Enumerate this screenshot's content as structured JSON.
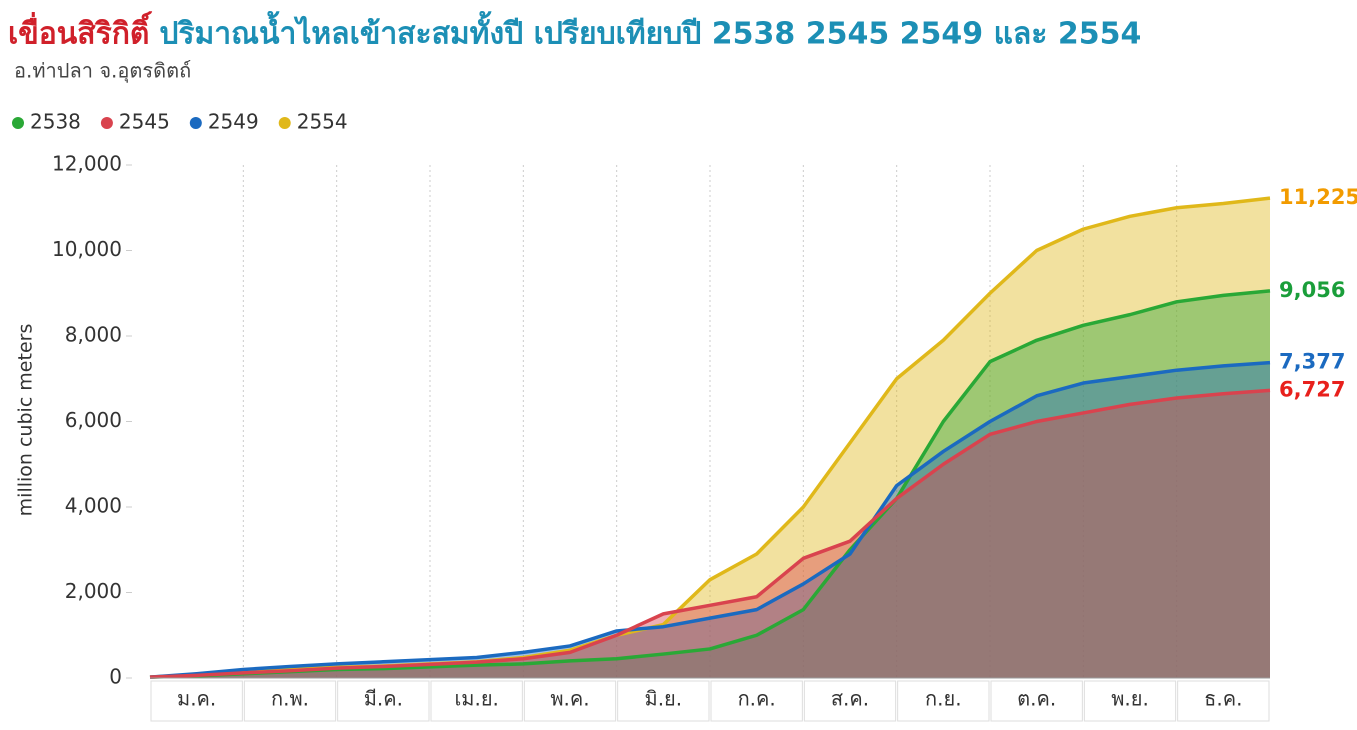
{
  "chart_data": {
    "type": "area-line",
    "title_highlight": "เขื่อนสิริกิติ์",
    "title": "ปริมาณน้ำไหลเข้าสะสมทั้งปี เปรียบเทียบปี 2538 2545 2549 และ 2554",
    "subtitle": "อ.ท่าปลา จ.อุตรดิตถ์",
    "y_label": "million cubic meters",
    "months": [
      "ม.ค.",
      "ก.พ.",
      "มี.ค.",
      "เม.ย.",
      "พ.ค.",
      "มิ.ย.",
      "ก.ค.",
      "ส.ค.",
      "ก.ย.",
      "ต.ค.",
      "พ.ย.",
      "ธ.ค."
    ],
    "x": [
      0,
      0.5,
      1,
      1.5,
      2,
      2.5,
      3,
      3.5,
      4,
      4.5,
      5,
      5.5,
      6,
      6.5,
      7,
      7.5,
      8,
      8.5,
      9,
      9.5,
      10,
      10.5,
      11,
      11.5,
      12
    ],
    "xlim": [
      0,
      12
    ],
    "ylim": [
      0,
      12000
    ],
    "yticks": [
      0,
      {
        "value": 2000,
        "label": "2,000"
      },
      {
        "value": 4000,
        "label": "4,000"
      },
      {
        "value": 6000,
        "label": "6,000"
      },
      {
        "value": 8000,
        "label": "8,000"
      },
      {
        "value": 10000,
        "label": "10,000"
      },
      {
        "value": 12000,
        "label": "12,000"
      }
    ],
    "grid": true,
    "legend": "top-left",
    "series": [
      {
        "name": "2538",
        "color": "#2aa836",
        "label_color": "#1a9e3a",
        "values": [
          20,
          50,
          100,
          150,
          200,
          220,
          260,
          300,
          330,
          400,
          450,
          560,
          680,
          1000,
          1600,
          3000,
          4200,
          6000,
          7400,
          7900,
          8250,
          8500,
          8800,
          8950,
          9056
        ],
        "value_labels": [
          null,
          null,
          null,
          null,
          null,
          null,
          null,
          null,
          null,
          null,
          null,
          null,
          null,
          null,
          null,
          null,
          null,
          null,
          null,
          null,
          null,
          null,
          null,
          null,
          "9,056"
        ]
      },
      {
        "name": "2545",
        "color": "#d9434e",
        "label_color": "#e8201c",
        "values": [
          20,
          60,
          120,
          170,
          230,
          270,
          320,
          370,
          450,
          600,
          1000,
          1500,
          1700,
          1900,
          2800,
          3200,
          4200,
          5000,
          5700,
          6000,
          6200,
          6400,
          6550,
          6650,
          6727
        ],
        "value_labels": [
          null,
          null,
          null,
          null,
          null,
          null,
          null,
          null,
          null,
          null,
          null,
          null,
          null,
          null,
          null,
          null,
          null,
          null,
          null,
          null,
          null,
          null,
          null,
          null,
          "6,727"
        ]
      },
      {
        "name": "2549",
        "color": "#1b6ac0",
        "label_color": "#1b6ac0",
        "values": [
          20,
          100,
          200,
          270,
          330,
          380,
          430,
          480,
          600,
          750,
          1100,
          1200,
          1400,
          1600,
          2200,
          2900,
          4500,
          5300,
          6000,
          6600,
          6900,
          7050,
          7200,
          7300,
          7377
        ],
        "value_labels": [
          null,
          null,
          null,
          null,
          null,
          null,
          null,
          null,
          null,
          null,
          null,
          null,
          null,
          null,
          null,
          null,
          null,
          null,
          null,
          null,
          null,
          null,
          null,
          null,
          "7,377"
        ]
      },
      {
        "name": "2554",
        "color": "#e0b81a",
        "label_color": "#f29b00",
        "values": [
          20,
          80,
          150,
          200,
          250,
          280,
          330,
          380,
          480,
          650,
          1000,
          1250,
          2300,
          2900,
          4000,
          5500,
          7000,
          7900,
          9000,
          10000,
          10500,
          10800,
          11000,
          11100,
          11225
        ],
        "value_labels": [
          null,
          null,
          null,
          null,
          null,
          null,
          null,
          null,
          null,
          null,
          null,
          null,
          null,
          null,
          null,
          null,
          null,
          null,
          null,
          null,
          null,
          null,
          null,
          null,
          "11,225"
        ]
      }
    ]
  }
}
